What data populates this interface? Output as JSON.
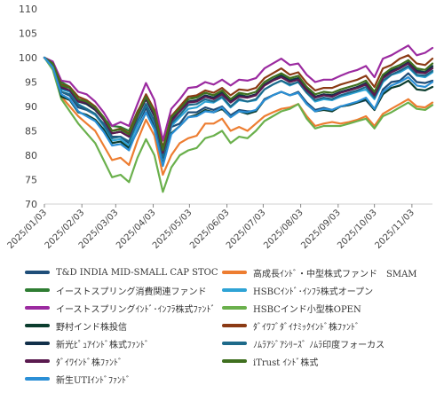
{
  "chart_data": {
    "type": "line",
    "title": "",
    "xlabel": "",
    "ylabel": "",
    "ylim": [
      70,
      110
    ],
    "yticks": [
      70,
      75,
      80,
      85,
      90,
      95,
      100,
      105,
      110
    ],
    "xlim": [
      "2025-01-03",
      "2025-11-20"
    ],
    "xticks": [
      "2025/01/03",
      "2025/02/03",
      "2025/03/03",
      "2025/04/03",
      "2025/05/03",
      "2025/06/03",
      "2025/07/03",
      "2025/08/03",
      "2025/09/03",
      "2025/10/03",
      "2025/11/03"
    ],
    "grid": false,
    "legend_position": "bottom",
    "x": [
      "2025-01-03",
      "2025-01-10",
      "2025-01-17",
      "2025-01-24",
      "2025-01-31",
      "2025-02-07",
      "2025-02-14",
      "2025-02-21",
      "2025-02-28",
      "2025-03-07",
      "2025-03-14",
      "2025-03-21",
      "2025-03-28",
      "2025-04-04",
      "2025-04-11",
      "2025-04-18",
      "2025-04-25",
      "2025-05-02",
      "2025-05-09",
      "2025-05-16",
      "2025-05-23",
      "2025-05-30",
      "2025-06-06",
      "2025-06-13",
      "2025-06-20",
      "2025-06-27",
      "2025-07-04",
      "2025-07-11",
      "2025-07-18",
      "2025-07-25",
      "2025-08-01",
      "2025-08-08",
      "2025-08-15",
      "2025-08-22",
      "2025-08-29",
      "2025-09-05",
      "2025-09-12",
      "2025-09-19",
      "2025-09-26",
      "2025-10-03",
      "2025-10-10",
      "2025-10-17",
      "2025-10-24",
      "2025-10-31",
      "2025-11-07",
      "2025-11-14",
      "2025-11-20"
    ],
    "series": [
      {
        "name": "T&D INDIA MID-SMALL CAP STOC",
        "color": "#1f4e79",
        "values": [
          100,
          98.5,
          93.0,
          92.2,
          89.8,
          89.3,
          88.3,
          86.5,
          83.8,
          83.8,
          82.5,
          86.3,
          89.7,
          86.0,
          78.5,
          85.8,
          86.5,
          88.8,
          88.8,
          89.8,
          89.3,
          90.0,
          88.2,
          89.3,
          89.0,
          89.0,
          91.5,
          92.3,
          93.0,
          92.3,
          93.0,
          90.8,
          89.3,
          89.7,
          89.3,
          90.0,
          90.3,
          90.8,
          91.3,
          89.3,
          93.5,
          95.0,
          95.3,
          96.8,
          95.0,
          94.8,
          95.3
        ]
      },
      {
        "name": "高成長ｲﾝﾄﾞ・中型株式ファンド　SMAM",
        "color": "#ed7d31",
        "values": [
          100,
          98.0,
          92.0,
          90.0,
          88.0,
          86.5,
          85.0,
          82.0,
          79.0,
          79.5,
          78.0,
          83.0,
          87.3,
          84.0,
          76.0,
          80.0,
          82.5,
          83.5,
          84.0,
          86.5,
          86.5,
          87.5,
          85.0,
          85.8,
          85.0,
          86.5,
          88.0,
          88.8,
          89.5,
          89.8,
          90.5,
          88.0,
          86.0,
          86.5,
          86.8,
          86.5,
          86.8,
          87.3,
          88.0,
          86.0,
          88.5,
          89.5,
          90.5,
          91.5,
          90.0,
          89.8,
          90.8
        ]
      },
      {
        "name": "イーストスプリング消費関連ファンド",
        "color": "#2e7d32",
        "values": [
          100,
          99.0,
          95.0,
          94.0,
          91.5,
          90.5,
          89.3,
          87.5,
          86.0,
          85.8,
          85.0,
          89.0,
          91.8,
          88.5,
          81.5,
          87.5,
          89.5,
          92.0,
          92.0,
          92.8,
          92.3,
          93.0,
          91.3,
          92.5,
          92.0,
          92.5,
          94.5,
          95.5,
          96.5,
          95.5,
          95.8,
          93.5,
          92.0,
          92.5,
          92.3,
          93.0,
          93.5,
          94.0,
          94.5,
          92.5,
          96.0,
          97.5,
          98.0,
          99.0,
          97.5,
          97.0,
          98.0
        ]
      },
      {
        "name": "HSBCｲﾝﾄﾞ･ｲﾝﾌﾗ株式オープン",
        "color": "#2ea3d5",
        "values": [
          100,
          98.5,
          93.5,
          93.0,
          90.5,
          89.5,
          88.3,
          86.0,
          83.0,
          83.3,
          82.0,
          86.5,
          90.5,
          86.8,
          79.0,
          86.0,
          87.8,
          89.5,
          89.8,
          91.0,
          90.8,
          91.8,
          89.8,
          91.3,
          91.0,
          91.3,
          93.5,
          94.5,
          95.3,
          94.3,
          95.0,
          92.8,
          91.0,
          91.5,
          91.3,
          92.0,
          92.5,
          93.0,
          93.5,
          91.5,
          95.0,
          96.5,
          97.0,
          98.0,
          96.3,
          96.0,
          97.0
        ]
      },
      {
        "name": "イーストスプリングｲﾝﾄﾞ･ｲﾝﾌﾗ株式ﾌｧﾝﾄﾞ",
        "color": "#9b2aa0",
        "values": [
          100,
          99.2,
          95.3,
          95.0,
          93.0,
          92.5,
          91.0,
          88.8,
          86.0,
          86.8,
          86.0,
          90.5,
          94.8,
          91.3,
          83.0,
          89.5,
          91.5,
          93.8,
          94.0,
          95.0,
          94.5,
          95.5,
          94.3,
          95.5,
          95.3,
          95.8,
          97.8,
          98.8,
          99.8,
          98.5,
          98.8,
          96.5,
          95.0,
          95.5,
          95.5,
          96.3,
          97.0,
          97.5,
          98.3,
          96.0,
          99.8,
          100.5,
          101.5,
          102.5,
          100.5,
          101.0,
          102.0
        ]
      },
      {
        "name": "HSBCインド小型株OPEN",
        "color": "#6ab04c",
        "values": [
          100,
          97.5,
          91.5,
          89.0,
          86.5,
          84.5,
          82.5,
          79.0,
          75.5,
          76.0,
          74.5,
          79.5,
          83.3,
          80.0,
          72.5,
          77.5,
          80.0,
          81.0,
          81.5,
          83.5,
          84.0,
          85.0,
          82.5,
          83.8,
          83.5,
          85.0,
          87.0,
          88.0,
          89.0,
          89.5,
          90.5,
          87.5,
          85.5,
          86.0,
          86.0,
          86.0,
          86.5,
          87.0,
          87.5,
          85.5,
          88.0,
          88.8,
          89.8,
          90.8,
          89.5,
          89.3,
          90.3
        ]
      },
      {
        "name": "野村インド株投信",
        "color": "#0b3d2e",
        "values": [
          100,
          98.8,
          92.0,
          91.3,
          88.8,
          88.3,
          87.3,
          85.3,
          82.5,
          82.8,
          81.5,
          85.0,
          88.8,
          85.5,
          78.0,
          84.5,
          86.0,
          87.8,
          88.3,
          89.3,
          88.8,
          89.5,
          87.8,
          89.0,
          88.5,
          89.0,
          91.3,
          92.3,
          93.0,
          92.3,
          92.8,
          90.5,
          89.0,
          89.3,
          89.0,
          90.0,
          90.3,
          90.8,
          91.5,
          89.3,
          92.5,
          93.8,
          94.3,
          95.3,
          93.5,
          93.3,
          94.0
        ]
      },
      {
        "name": "ﾀﾞｲﾜﾌﾞﾀﾞｲﾅﾐｯｸｲﾝﾄﾞ株ﾌｧﾝﾄﾞ",
        "color": "#8b3a14",
        "values": [
          100,
          98.8,
          94.5,
          94.0,
          92.0,
          91.3,
          90.0,
          87.8,
          85.0,
          85.5,
          84.5,
          88.8,
          92.5,
          89.3,
          81.5,
          88.0,
          90.0,
          92.0,
          92.3,
          93.3,
          92.8,
          93.8,
          92.3,
          93.5,
          93.3,
          93.8,
          95.8,
          96.8,
          97.8,
          96.5,
          97.0,
          94.8,
          93.3,
          93.8,
          93.8,
          94.5,
          95.0,
          95.5,
          96.3,
          94.0,
          97.8,
          98.5,
          99.8,
          100.5,
          98.8,
          98.5,
          99.8
        ]
      },
      {
        "name": "新光ﾋﾟｭｱｲﾝﾄﾞ株式ﾌｧﾝﾄﾞ",
        "color": "#12304a",
        "values": [
          100,
          98.8,
          93.8,
          93.3,
          91.0,
          90.5,
          89.3,
          87.3,
          84.5,
          84.8,
          83.8,
          88.0,
          91.5,
          88.0,
          80.5,
          87.3,
          89.0,
          91.0,
          91.3,
          92.3,
          91.8,
          92.8,
          91.0,
          92.3,
          92.0,
          92.5,
          94.5,
          95.5,
          96.3,
          95.3,
          95.8,
          93.5,
          92.0,
          92.5,
          92.3,
          93.0,
          93.5,
          94.0,
          94.8,
          92.5,
          96.0,
          97.3,
          98.0,
          99.0,
          97.3,
          97.0,
          98.3
        ]
      },
      {
        "name": "ﾉﾑﾗｱｼﾞｱｼﾘｰｽﾞ ﾉﾑﾗ印度フォーカス",
        "color": "#1d6a8a",
        "values": [
          100,
          98.5,
          93.0,
          92.5,
          90.3,
          89.5,
          88.5,
          86.3,
          83.5,
          83.8,
          82.8,
          87.0,
          90.5,
          87.0,
          79.5,
          86.5,
          88.3,
          90.3,
          90.5,
          91.5,
          91.0,
          92.0,
          90.0,
          91.5,
          91.0,
          91.5,
          93.5,
          94.5,
          95.3,
          94.5,
          95.0,
          92.8,
          91.3,
          91.8,
          91.5,
          92.3,
          92.8,
          93.3,
          94.0,
          91.8,
          95.3,
          96.5,
          97.3,
          98.3,
          96.5,
          96.3,
          97.3
        ]
      },
      {
        "name": "ﾀﾞｲﾜｲﾝﾄﾞ株ﾌｧﾝﾄﾞ",
        "color": "#5a1a4f",
        "values": [
          100,
          98.8,
          94.0,
          93.3,
          91.0,
          90.8,
          89.5,
          87.3,
          84.5,
          84.8,
          83.8,
          88.0,
          91.8,
          88.3,
          80.5,
          87.0,
          89.0,
          90.8,
          91.0,
          92.0,
          91.5,
          92.5,
          90.8,
          92.0,
          91.8,
          92.3,
          94.3,
          95.3,
          96.0,
          95.0,
          95.5,
          93.3,
          91.8,
          92.3,
          92.0,
          92.8,
          93.3,
          93.8,
          94.5,
          92.3,
          95.8,
          97.0,
          97.8,
          98.8,
          97.0,
          96.8,
          97.8
        ]
      },
      {
        "name": "iTrust ｲﾝﾄﾞ株式",
        "color": "#3f6f1f",
        "values": [
          100,
          98.8,
          94.3,
          93.8,
          91.5,
          91.0,
          89.8,
          87.8,
          85.0,
          85.3,
          84.3,
          88.3,
          92.0,
          88.8,
          81.0,
          87.8,
          89.5,
          91.5,
          91.8,
          92.8,
          92.3,
          93.3,
          91.5,
          92.8,
          92.5,
          93.0,
          95.0,
          96.0,
          96.8,
          95.8,
          96.3,
          94.0,
          92.5,
          93.0,
          92.8,
          93.5,
          94.0,
          94.5,
          95.3,
          93.0,
          96.5,
          97.8,
          98.5,
          99.5,
          97.8,
          97.5,
          98.8
        ]
      },
      {
        "name": "新生UTIｲﾝﾄﾞﾌｧﾝﾄﾞ",
        "color": "#2b8fd6",
        "values": [
          100,
          98.0,
          92.5,
          91.5,
          89.0,
          88.0,
          87.0,
          84.8,
          82.0,
          82.3,
          81.0,
          85.3,
          88.8,
          85.3,
          77.8,
          84.3,
          86.0,
          87.8,
          88.0,
          89.0,
          88.8,
          89.8,
          87.8,
          89.0,
          88.8,
          89.3,
          91.3,
          92.3,
          93.0,
          92.3,
          92.8,
          90.5,
          89.0,
          89.5,
          89.3,
          90.0,
          90.5,
          91.0,
          91.8,
          89.5,
          93.0,
          94.3,
          95.0,
          96.0,
          94.3,
          94.0,
          95.0
        ]
      }
    ]
  }
}
